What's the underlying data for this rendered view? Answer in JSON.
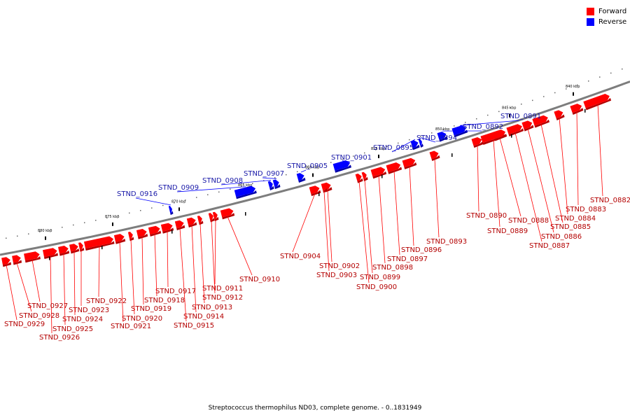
{
  "legend": {
    "forward": {
      "label": "Forward",
      "color": "#ff0000"
    },
    "reverse": {
      "label": "Reverse",
      "color": "#0000ff"
    }
  },
  "caption": "Streptococcus thermophilus ND03, complete genome. - 0..1831949",
  "ruler_ticks": [
    "840 kbp",
    "845 kbp",
    "850 kbp",
    "855 kbp",
    "860 kbp",
    "865 kbp",
    "870 kbp",
    "875 kbp",
    "880 kbp"
  ],
  "genes": [
    {
      "name": "STND_0882",
      "strand": "forward"
    },
    {
      "name": "STND_0883",
      "strand": "forward"
    },
    {
      "name": "STND_0884",
      "strand": "forward"
    },
    {
      "name": "STND_0885",
      "strand": "forward"
    },
    {
      "name": "STND_0886",
      "strand": "forward"
    },
    {
      "name": "STND_0887",
      "strand": "forward"
    },
    {
      "name": "STND_0888",
      "strand": "forward"
    },
    {
      "name": "STND_0889",
      "strand": "forward"
    },
    {
      "name": "STND_0890",
      "strand": "forward"
    },
    {
      "name": "STND_0891",
      "strand": "reverse"
    },
    {
      "name": "STND_0892",
      "strand": "reverse"
    },
    {
      "name": "STND_0893",
      "strand": "forward"
    },
    {
      "name": "STND_0894",
      "strand": "reverse"
    },
    {
      "name": "STND_0895",
      "strand": "reverse"
    },
    {
      "name": "STND_0896",
      "strand": "forward"
    },
    {
      "name": "STND_0897",
      "strand": "forward"
    },
    {
      "name": "STND_0898",
      "strand": "forward"
    },
    {
      "name": "STND_0899",
      "strand": "forward"
    },
    {
      "name": "STND_0900",
      "strand": "forward"
    },
    {
      "name": "STND_0901",
      "strand": "reverse"
    },
    {
      "name": "STND_0902",
      "strand": "forward"
    },
    {
      "name": "STND_0903",
      "strand": "forward"
    },
    {
      "name": "STND_0904",
      "strand": "forward"
    },
    {
      "name": "STND_0905",
      "strand": "reverse"
    },
    {
      "name": "STND_0907",
      "strand": "reverse"
    },
    {
      "name": "STND_0908",
      "strand": "reverse"
    },
    {
      "name": "STND_0909",
      "strand": "reverse"
    },
    {
      "name": "STND_0910",
      "strand": "forward"
    },
    {
      "name": "STND_0911",
      "strand": "forward"
    },
    {
      "name": "STND_0912",
      "strand": "forward"
    },
    {
      "name": "STND_0913",
      "strand": "forward"
    },
    {
      "name": "STND_0914",
      "strand": "forward"
    },
    {
      "name": "STND_0915",
      "strand": "forward"
    },
    {
      "name": "STND_0916",
      "strand": "reverse"
    },
    {
      "name": "STND_0917",
      "strand": "forward"
    },
    {
      "name": "STND_0918",
      "strand": "forward"
    },
    {
      "name": "STND_0919",
      "strand": "forward"
    },
    {
      "name": "STND_0920",
      "strand": "forward"
    },
    {
      "name": "STND_0921",
      "strand": "forward"
    },
    {
      "name": "STND_0922",
      "strand": "forward"
    },
    {
      "name": "STND_0923",
      "strand": "forward"
    },
    {
      "name": "STND_0924",
      "strand": "forward"
    },
    {
      "name": "STND_0925",
      "strand": "forward"
    },
    {
      "name": "STND_0926",
      "strand": "forward"
    },
    {
      "name": "STND_0927",
      "strand": "forward"
    },
    {
      "name": "STND_0928",
      "strand": "forward"
    },
    {
      "name": "STND_0929",
      "strand": "forward"
    }
  ]
}
